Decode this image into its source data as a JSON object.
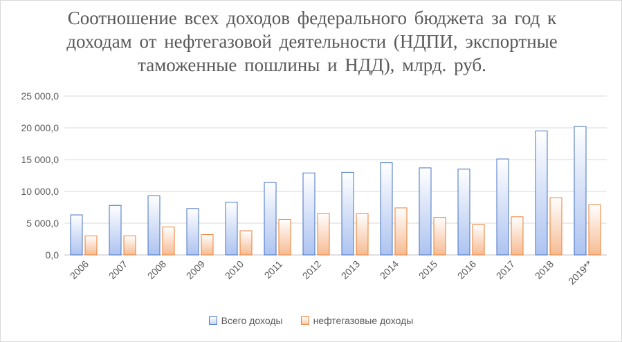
{
  "chart_data": {
    "type": "bar",
    "title": "Соотношение всех доходов федерального бюджета за год к доходам от нефтегазовой деятельности (НДПИ, экспортные таможенные пошлины и НДД), млрд. руб.",
    "categories": [
      "2006",
      "2007",
      "2008",
      "2009",
      "2010",
      "2011",
      "2012",
      "2013",
      "2014",
      "2015",
      "2016",
      "2017",
      "2018",
      "2019**"
    ],
    "series": [
      {
        "name": "Всего доходы",
        "values": [
          6300,
          7800,
          9300,
          7300,
          8300,
          11400,
          12900,
          13000,
          14500,
          13700,
          13500,
          15100,
          19500,
          20200
        ],
        "color": "#4472c4"
      },
      {
        "name": "нефтегазовые доходы",
        "values": [
          3000,
          3000,
          4400,
          3200,
          3800,
          5600,
          6500,
          6500,
          7400,
          5900,
          4800,
          6000,
          9000,
          7900
        ],
        "color": "#ed7d31"
      }
    ],
    "yticks": [
      "0,0",
      "5 000,0",
      "10 000,0",
      "15 000,0",
      "20 000,0",
      "25 000,0"
    ],
    "ylim": [
      0,
      25000
    ],
    "grid": true,
    "legend_position": "bottom"
  }
}
